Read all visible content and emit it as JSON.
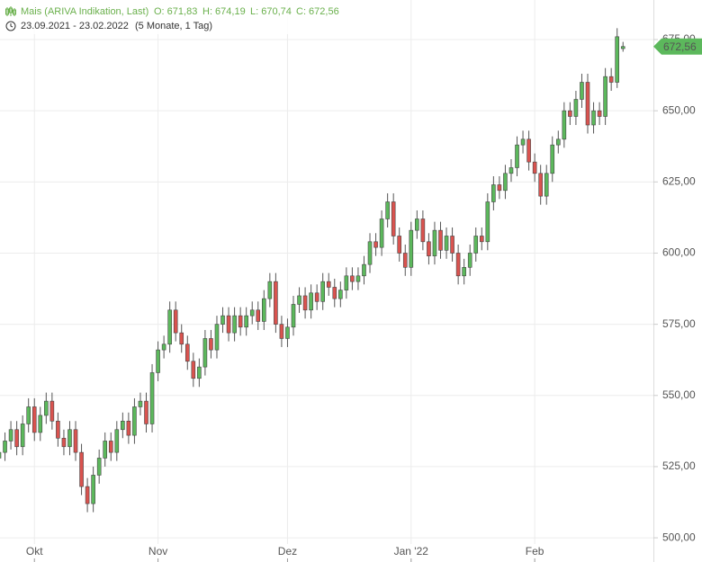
{
  "chart_data": {
    "type": "candlestick",
    "header": {
      "instrument": "Mais (ARIVA Indikation, Last)",
      "open_label": "O: 671,83",
      "high_label": "H: 674,19",
      "low_label": "L: 670,74",
      "close_label": "C: 672,56",
      "range": "23.09.2021 - 23.02.2022",
      "period": "(5 Monate, 1 Tag)"
    },
    "up_color": "#5cb85c",
    "down_color": "#d9534f",
    "open": [
      528,
      530,
      534,
      538,
      532,
      540,
      546,
      537,
      543,
      548,
      541,
      535,
      532,
      538,
      530,
      518,
      512,
      522,
      528,
      534,
      530,
      538,
      541,
      536,
      546,
      548,
      540,
      558,
      566,
      568,
      580,
      572,
      568,
      562,
      556,
      560,
      570,
      566,
      575,
      578,
      572,
      578,
      574,
      578,
      580,
      576,
      584,
      590,
      575,
      570,
      574,
      582,
      585,
      580,
      586,
      583,
      590,
      588,
      584,
      587,
      592,
      590,
      592,
      596,
      604,
      602,
      612,
      618,
      606,
      600,
      595,
      608,
      612,
      604,
      599,
      608,
      601,
      606,
      600,
      592,
      595,
      600,
      606,
      604,
      618,
      624,
      622,
      628,
      630,
      638,
      640,
      632,
      628,
      620,
      628,
      638,
      640,
      650,
      648,
      654,
      660,
      645,
      650,
      648,
      662,
      660,
      671.83
    ],
    "high": [
      533,
      537,
      541,
      541,
      543,
      549,
      549,
      546,
      551,
      551,
      544,
      538,
      541,
      541,
      533,
      521,
      525,
      531,
      537,
      537,
      541,
      544,
      544,
      549,
      551,
      551,
      561,
      569,
      571,
      583,
      583,
      575,
      571,
      565,
      563,
      573,
      573,
      578,
      581,
      581,
      581,
      581,
      581,
      583,
      583,
      587,
      593,
      593,
      578,
      577,
      585,
      588,
      588,
      589,
      589,
      593,
      593,
      591,
      590,
      595,
      595,
      595,
      599,
      607,
      607,
      615,
      621,
      621,
      609,
      603,
      611,
      615,
      615,
      607,
      611,
      611,
      609,
      609,
      603,
      598,
      603,
      609,
      609,
      621,
      627,
      627,
      631,
      633,
      641,
      643,
      643,
      635,
      631,
      631,
      641,
      643,
      653,
      653,
      657,
      663,
      663,
      653,
      653,
      665,
      665,
      679,
      674.19
    ],
    "low": [
      525,
      527,
      531,
      529,
      529,
      537,
      534,
      534,
      540,
      538,
      532,
      529,
      529,
      527,
      515,
      509,
      509,
      519,
      525,
      527,
      527,
      535,
      533,
      533,
      543,
      537,
      537,
      555,
      563,
      565,
      569,
      565,
      559,
      553,
      553,
      557,
      563,
      563,
      572,
      569,
      569,
      571,
      571,
      575,
      573,
      573,
      581,
      572,
      567,
      567,
      571,
      579,
      577,
      577,
      580,
      580,
      585,
      581,
      581,
      584,
      587,
      587,
      589,
      593,
      599,
      599,
      609,
      603,
      597,
      592,
      592,
      605,
      601,
      596,
      596,
      598,
      598,
      597,
      589,
      589,
      592,
      597,
      601,
      601,
      615,
      619,
      619,
      625,
      627,
      635,
      629,
      625,
      617,
      617,
      625,
      635,
      637,
      645,
      645,
      651,
      642,
      642,
      645,
      645,
      657,
      658,
      670.74
    ],
    "close": [
      530,
      534,
      538,
      532,
      540,
      546,
      537,
      543,
      548,
      541,
      535,
      532,
      538,
      530,
      518,
      512,
      522,
      528,
      534,
      530,
      538,
      541,
      536,
      546,
      548,
      540,
      558,
      566,
      568,
      580,
      572,
      568,
      562,
      556,
      560,
      570,
      566,
      575,
      578,
      572,
      578,
      574,
      578,
      580,
      576,
      584,
      590,
      575,
      570,
      574,
      582,
      585,
      580,
      586,
      583,
      590,
      588,
      584,
      587,
      592,
      590,
      592,
      596,
      604,
      602,
      612,
      618,
      606,
      600,
      595,
      608,
      612,
      604,
      599,
      608,
      601,
      606,
      600,
      592,
      595,
      600,
      606,
      604,
      618,
      624,
      622,
      628,
      630,
      638,
      640,
      632,
      628,
      620,
      628,
      638,
      640,
      650,
      648,
      654,
      660,
      645,
      650,
      648,
      662,
      660,
      676,
      672.56
    ],
    "last_label": "672,56",
    "xticks": [
      {
        "value": 6,
        "label": "Okt"
      },
      {
        "value": 27,
        "label": "Nov"
      },
      {
        "value": 49,
        "label": "Dez"
      },
      {
        "value": 70,
        "label": "Jan '22"
      },
      {
        "value": 91,
        "label": "Feb"
      }
    ],
    "ylim": [
      491.5,
      688.9
    ],
    "yticks": [
      {
        "value": 500,
        "label": "500,00"
      },
      {
        "value": 525,
        "label": "525,00"
      },
      {
        "value": 550,
        "label": "550,00"
      },
      {
        "value": 575,
        "label": "575,00"
      },
      {
        "value": 600,
        "label": "600,00"
      },
      {
        "value": 625,
        "label": "625,00"
      },
      {
        "value": 650,
        "label": "650,00"
      },
      {
        "value": 675,
        "label": "675,00"
      }
    ],
    "grid": true
  }
}
